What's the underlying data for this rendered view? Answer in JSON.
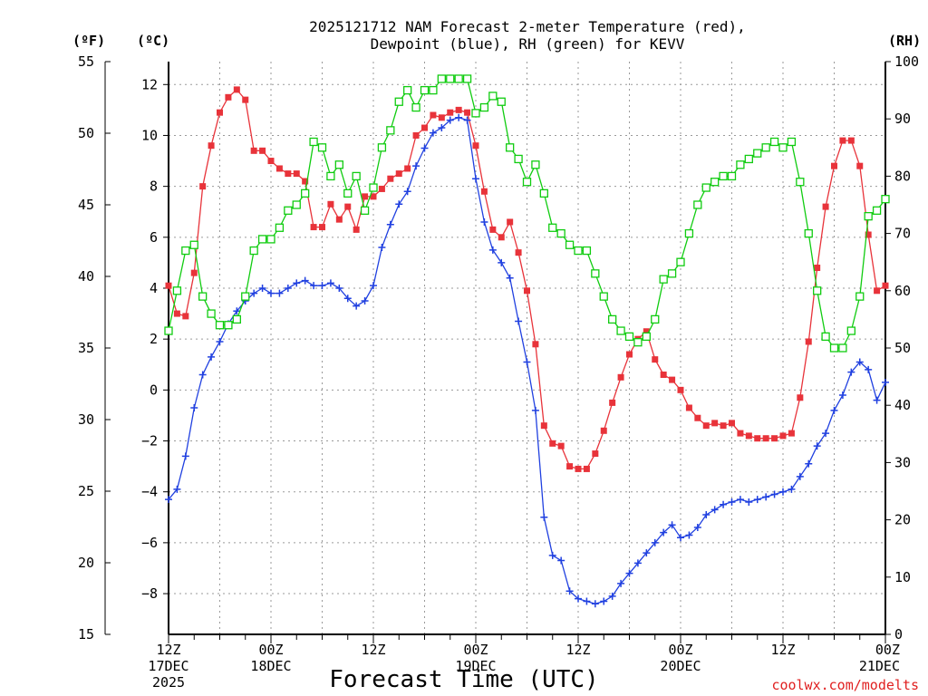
{
  "chart_data": {
    "type": "line",
    "title_lines": [
      "2025121712 NAM Forecast 2-meter Temperature (red),",
      "Dewpoint (blue), RH (green) for KEVV"
    ],
    "xlabel": "Forecast Time (UTC)",
    "credit": "coolwx.com/modelts",
    "units": {
      "fahrenheit": "(ºF)",
      "celsius": "(ºC)",
      "rh": "(RH)"
    },
    "x_unit": "forecast hour from 2025-12-17 12Z",
    "xlim": [
      0,
      84
    ],
    "x_ticks": [
      {
        "x": 0,
        "lines": [
          "12Z",
          "17DEC",
          "2025"
        ]
      },
      {
        "x": 12,
        "lines": [
          "00Z",
          "18DEC"
        ]
      },
      {
        "x": 24,
        "lines": [
          "12Z"
        ]
      },
      {
        "x": 36,
        "lines": [
          "00Z",
          "19DEC"
        ]
      },
      {
        "x": 48,
        "lines": [
          "12Z"
        ]
      },
      {
        "x": 60,
        "lines": [
          "00Z",
          "20DEC"
        ]
      },
      {
        "x": 72,
        "lines": [
          "12Z"
        ]
      },
      {
        "x": 84,
        "lines": [
          "00Z",
          "21DEC"
        ]
      }
    ],
    "y_celsius": {
      "range": [
        -9.6,
        12.9
      ],
      "ticks": [
        -8,
        -6,
        -4,
        -2,
        0,
        2,
        4,
        6,
        8,
        10,
        12
      ]
    },
    "y_fahrenheit": {
      "range": [
        15,
        55
      ],
      "ticks": [
        15,
        20,
        25,
        30,
        35,
        40,
        45,
        50,
        55
      ]
    },
    "y_rh": {
      "range": [
        0,
        100
      ],
      "ticks": [
        0,
        10,
        20,
        30,
        40,
        50,
        60,
        70,
        80,
        90,
        100
      ]
    },
    "grid": true,
    "series": [
      {
        "name": "Temperature",
        "color": "#e8333a",
        "marker": "filled-square",
        "axis": "celsius",
        "values": [
          4.1,
          3.0,
          2.9,
          4.6,
          8.0,
          9.6,
          10.9,
          11.5,
          11.8,
          11.4,
          9.4,
          9.4,
          9.0,
          8.7,
          8.5,
          8.5,
          8.2,
          6.4,
          6.4,
          7.3,
          6.7,
          7.2,
          6.3,
          7.6,
          7.6,
          7.9,
          8.3,
          8.5,
          8.7,
          10.0,
          10.3,
          10.8,
          10.7,
          10.9,
          11.0,
          10.9,
          9.6,
          7.8,
          6.3,
          6.0,
          6.6,
          5.4,
          3.9,
          1.8,
          -1.4,
          -2.1,
          -2.2,
          -3.0,
          -3.1,
          -3.1,
          -2.5,
          -1.6,
          -0.5,
          0.5,
          1.4,
          2.0,
          2.3,
          1.2,
          0.6,
          0.4,
          0.0,
          -0.7,
          -1.1,
          -1.4,
          -1.3,
          -1.4,
          -1.3,
          -1.7,
          -1.8,
          -1.9,
          -1.9,
          -1.9,
          -1.8,
          -1.7,
          -0.3,
          1.9,
          4.8,
          7.2,
          8.8,
          9.8,
          9.8,
          8.8,
          6.1,
          3.9,
          4.1
        ]
      },
      {
        "name": "Dewpoint",
        "color": "#2040e0",
        "marker": "plus",
        "axis": "celsius",
        "values": [
          -4.3,
          -3.9,
          -2.6,
          -0.7,
          0.6,
          1.3,
          1.9,
          2.6,
          3.1,
          3.5,
          3.8,
          4.0,
          3.8,
          3.8,
          4.0,
          4.2,
          4.3,
          4.1,
          4.1,
          4.2,
          4.0,
          3.6,
          3.3,
          3.5,
          4.1,
          5.6,
          6.5,
          7.3,
          7.8,
          8.8,
          9.5,
          10.1,
          10.3,
          10.6,
          10.7,
          10.6,
          8.3,
          6.6,
          5.5,
          5.0,
          4.4,
          2.7,
          1.1,
          -0.8,
          -5.0,
          -6.5,
          -6.7,
          -7.9,
          -8.2,
          -8.3,
          -8.4,
          -8.3,
          -8.1,
          -7.6,
          -7.2,
          -6.8,
          -6.4,
          -6.0,
          -5.6,
          -5.3,
          -5.8,
          -5.7,
          -5.4,
          -4.9,
          -4.7,
          -4.5,
          -4.4,
          -4.3,
          -4.4,
          -4.3,
          -4.2,
          -4.1,
          -4.0,
          -3.9,
          -3.4,
          -2.9,
          -2.2,
          -1.7,
          -0.8,
          -0.2,
          0.7,
          1.1,
          0.8,
          -0.4,
          0.3
        ]
      },
      {
        "name": "RH",
        "color": "#10cc10",
        "marker": "open-square",
        "axis": "rh",
        "values": [
          53,
          60,
          67,
          68,
          59,
          56,
          54,
          54,
          55,
          59,
          67,
          69,
          69,
          71,
          74,
          75,
          77,
          86,
          85,
          80,
          82,
          77,
          80,
          74,
          78,
          85,
          88,
          93,
          95,
          92,
          95,
          95,
          97,
          97,
          97,
          97,
          91,
          92,
          94,
          93,
          85,
          83,
          79,
          82,
          77,
          71,
          70,
          68,
          67,
          67,
          63,
          59,
          55,
          53,
          52,
          51,
          52,
          55,
          62,
          63,
          65,
          70,
          75,
          78,
          79,
          80,
          80,
          82,
          83,
          84,
          85,
          86,
          85,
          86,
          79,
          70,
          60,
          52,
          50,
          50,
          53,
          59,
          73,
          74,
          76
        ]
      }
    ]
  }
}
